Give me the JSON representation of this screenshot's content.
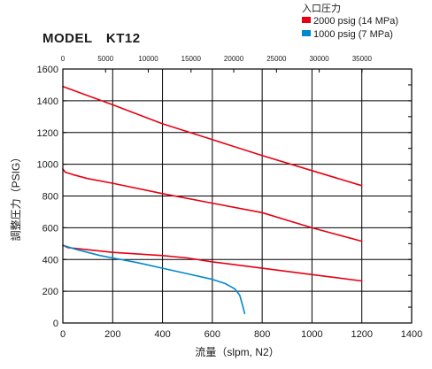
{
  "chart_data": {
    "type": "line",
    "title": "MODEL　KT12",
    "xlabel": "流量（slpm, N2）",
    "ylabel": "調整圧力（PSIG）",
    "xlim": [
      0,
      1400
    ],
    "ylim": [
      0,
      1600
    ],
    "x_ticks": [
      0,
      200,
      400,
      600,
      800,
      1000,
      1200,
      1400
    ],
    "y_ticks": [
      0,
      200,
      400,
      600,
      800,
      1000,
      1200,
      1400,
      1600
    ],
    "x_tick_labels": [
      "0",
      "200",
      "400",
      "600",
      "800",
      "1000",
      "1200",
      "1400"
    ],
    "y_tick_labels": [
      "0",
      "200",
      "400",
      "600",
      "800",
      "1000",
      "1200",
      "1400",
      "1600"
    ],
    "top_axis": {
      "ticks": [
        0,
        5000,
        10000,
        15000,
        20000,
        25000,
        30000,
        35000
      ],
      "tick_labels": [
        "0",
        "5000",
        "10000",
        "15000",
        "20000",
        "25000",
        "30000",
        "35000"
      ],
      "x_at_zero": 0,
      "x_per_unit": 0.0343
    },
    "grid": true,
    "legend": {
      "title": "入口圧力",
      "position": "top-right",
      "entries": [
        {
          "label": "2000 psig (14 MPa)",
          "color": "#e60012"
        },
        {
          "label": "1000 psig (7 MPa)",
          "color": "#0088cc"
        }
      ]
    },
    "series": [
      {
        "legend_index": 0,
        "color": "#e60012",
        "x": [
          0,
          200,
          400,
          600,
          800,
          1000,
          1200
        ],
        "y": [
          1490,
          1375,
          1255,
          1155,
          1055,
          960,
          865
        ]
      },
      {
        "legend_index": 0,
        "color": "#e60012",
        "x": [
          0,
          10,
          40,
          100,
          200,
          400,
          600,
          800,
          1000,
          1200
        ],
        "y": [
          970,
          950,
          935,
          910,
          880,
          815,
          755,
          695,
          600,
          515
        ]
      },
      {
        "legend_index": 0,
        "color": "#e60012",
        "x": [
          0,
          20,
          200,
          400,
          500,
          600,
          800,
          1000,
          1200
        ],
        "y": [
          490,
          475,
          445,
          425,
          410,
          385,
          345,
          305,
          265
        ]
      },
      {
        "legend_index": 1,
        "color": "#0088cc",
        "x": [
          0,
          50,
          100,
          150,
          200,
          300,
          400,
          500,
          600,
          650,
          690,
          710,
          720,
          730
        ],
        "y": [
          490,
          465,
          445,
          425,
          410,
          380,
          345,
          310,
          275,
          250,
          215,
          175,
          120,
          60
        ]
      }
    ]
  }
}
